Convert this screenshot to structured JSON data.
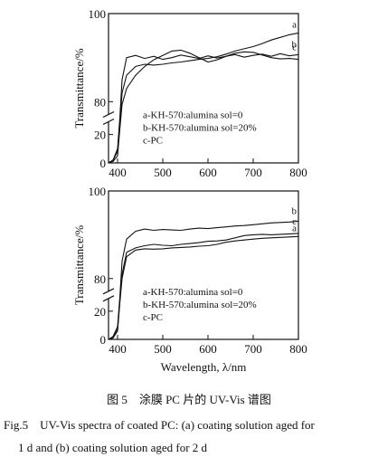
{
  "chart_data": [
    {
      "type": "line",
      "y_label": "Transmittance/%",
      "y_break": true,
      "xlim": [
        380,
        800
      ],
      "xticks": [
        400,
        500,
        600,
        700,
        800
      ],
      "ylim": [
        0,
        100
      ],
      "yticks": [
        0,
        20,
        80,
        100
      ],
      "annotations": [
        "a-KH-570:alumina sol=0",
        "b-KH-570:alumina sol=20%",
        "c-PC"
      ],
      "x": [
        380,
        390,
        400,
        405,
        410,
        420,
        440,
        460,
        480,
        500,
        520,
        540,
        560,
        580,
        600,
        620,
        640,
        660,
        680,
        700,
        720,
        740,
        760,
        780,
        800
      ],
      "series": [
        {
          "name": "a",
          "color": "#111111",
          "values": [
            0,
            2,
            8,
            40,
            82,
            86,
            88,
            88.5,
            88.3,
            88.5,
            88.8,
            89,
            89.3,
            89.6,
            89.8,
            90.2,
            90.8,
            91.5,
            92,
            92.5,
            93.2,
            94,
            94.6,
            95.2,
            95.6
          ]
        },
        {
          "name": "b",
          "color": "#111111",
          "values": [
            0,
            2,
            10,
            50,
            85,
            90,
            90.5,
            89.8,
            90.3,
            89.6,
            90,
            90.6,
            90.2,
            89.8,
            90.4,
            89.9,
            90.3,
            90.7,
            90.1,
            90.5,
            90.8,
            90.3,
            90.9,
            90.4,
            90.7
          ]
        },
        {
          "name": "c",
          "color": "#111111",
          "values": [
            0,
            1,
            5,
            30,
            75,
            83,
            86,
            88,
            89.5,
            90.5,
            91.5,
            91.7,
            91,
            90,
            89,
            89.5,
            90.3,
            91,
            91.3,
            91.2,
            90.6,
            90,
            89.7,
            89.8,
            89.6
          ]
        }
      ]
    },
    {
      "type": "line",
      "y_label": "Transmittance/%",
      "x_label": "Wavelength, λ/nm",
      "y_break": true,
      "xlim": [
        380,
        800
      ],
      "xticks": [
        400,
        500,
        600,
        700,
        800
      ],
      "ylim": [
        0,
        100
      ],
      "yticks": [
        0,
        20,
        80,
        100
      ],
      "annotations": [
        "a-KH-570:alumina sol=0",
        "b-KH-570:alumina sol=20%",
        "c-PC"
      ],
      "x": [
        380,
        390,
        400,
        405,
        410,
        420,
        440,
        460,
        480,
        500,
        520,
        540,
        560,
        580,
        600,
        620,
        640,
        660,
        680,
        700,
        720,
        740,
        760,
        780,
        800
      ],
      "series": [
        {
          "name": "a",
          "color": "#111111",
          "values": [
            0,
            1,
            6,
            35,
            80,
            85,
            86.5,
            86.8,
            86.7,
            86.8,
            87,
            87.1,
            87.2,
            87.4,
            87.5,
            87.8,
            88.3,
            88.6,
            88.8,
            89,
            89.2,
            89.3,
            89.4,
            89.5,
            89.6
          ]
        },
        {
          "name": "b",
          "color": "#111111",
          "values": [
            0,
            2,
            9,
            45,
            84,
            89,
            90.8,
            91.3,
            91,
            91.2,
            91.1,
            91,
            91.3,
            91.5,
            91.4,
            91.6,
            91.8,
            92,
            92.1,
            92.3,
            92.5,
            92.7,
            92.8,
            92.9,
            93.1
          ]
        },
        {
          "name": "c",
          "color": "#111111",
          "values": [
            0,
            1,
            7,
            38,
            81,
            86,
            87,
            87.5,
            87.8,
            87.6,
            87.5,
            87.8,
            88,
            88.2,
            88.5,
            88.6,
            88.8,
            89.3,
            89.8,
            90,
            90.1,
            90,
            90.1,
            90.2,
            90.3
          ]
        }
      ]
    }
  ],
  "caption": {
    "zh": "图 5　涂膜 PC 片的 UV-Vis 谱图",
    "en_1": "Fig.5　UV-Vis spectra of coated PC: (a) coating solution aged for",
    "en_2": "1 d and (b) coating solution aged for 2 d"
  }
}
